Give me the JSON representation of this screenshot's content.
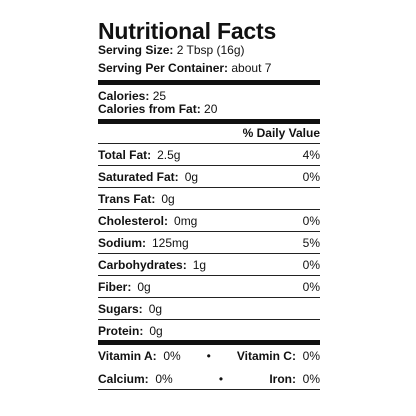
{
  "title": "Nutritional Facts",
  "serving": {
    "size_label": "Serving Size:",
    "size_value": "2 Tbsp (16g)",
    "per_container_label": "Serving Per Container:",
    "per_container_value": "about 7"
  },
  "calories": {
    "label": "Calories:",
    "value": "25",
    "fat_label": "Calories from Fat:",
    "fat_value": "20"
  },
  "daily_value_header": "% Daily Value",
  "rows": [
    {
      "label": "Total Fat:",
      "amount": "2.5g",
      "dv": "4%"
    },
    {
      "label": "Saturated Fat:",
      "amount": "0g",
      "dv": "0%"
    },
    {
      "label": "Trans Fat:",
      "amount": "0g"
    },
    {
      "label": "Cholesterol:",
      "amount": "0mg",
      "dv": "0%"
    },
    {
      "label": "Sodium:",
      "amount": "125mg",
      "dv": "5%"
    },
    {
      "label": "Carbohydrates:",
      "amount": "1g",
      "dv": "0%"
    },
    {
      "label": "Fiber:",
      "amount": "0g",
      "dv": "0%"
    },
    {
      "label": "Sugars:",
      "amount": "0g"
    },
    {
      "label": "Protein:",
      "amount": "0g"
    }
  ],
  "vitamins": [
    [
      {
        "label": "Vitamin A:",
        "value": "0%"
      },
      {
        "label": "Vitamin C:",
        "value": "0%"
      }
    ],
    [
      {
        "label": "Calcium:",
        "value": "0%"
      },
      {
        "label": "Iron:",
        "value": "0%"
      }
    ]
  ]
}
